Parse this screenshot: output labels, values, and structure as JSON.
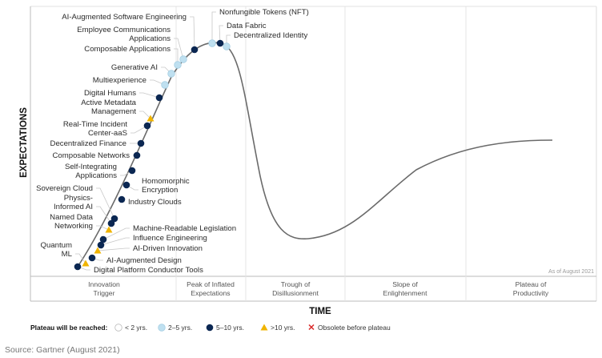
{
  "axes": {
    "y_label": "EXPECTATIONS",
    "x_label": "TIME"
  },
  "as_of": "As of August 2021",
  "phases": [
    [
      "Innovation",
      "Trigger"
    ],
    [
      "Peak of Inflated",
      "Expectations"
    ],
    [
      "Trough of",
      "Disillusionment"
    ],
    [
      "Slope of",
      "Enlightenment"
    ],
    [
      "Plateau of",
      "Productivity"
    ]
  ],
  "technologies": [
    {
      "lines": [
        "Nonfungible Tokens (NFT)"
      ],
      "category": "2-5"
    },
    {
      "lines": [
        "Data Fabric"
      ],
      "category": "5-10"
    },
    {
      "lines": [
        "Decentralized Identity"
      ],
      "category": "2-5"
    },
    {
      "lines": [
        "AI-Augmented Software Engineering"
      ],
      "category": "5-10"
    },
    {
      "lines": [
        "Employee Communications",
        "Applications"
      ],
      "category": "2-5"
    },
    {
      "lines": [
        "Composable Applications"
      ],
      "category": "2-5"
    },
    {
      "lines": [
        "Generative AI"
      ],
      "category": "2-5"
    },
    {
      "lines": [
        "Multiexperience"
      ],
      "category": "2-5"
    },
    {
      "lines": [
        "Digital Humans"
      ],
      "category": "5-10"
    },
    {
      "lines": [
        "Active Metadata",
        "Management"
      ],
      "category": ">10"
    },
    {
      "lines": [
        "Real-Time Incident",
        "Center-aaS"
      ],
      "category": "5-10"
    },
    {
      "lines": [
        "Decentralized Finance"
      ],
      "category": "5-10"
    },
    {
      "lines": [
        "Composable Networks"
      ],
      "category": "5-10"
    },
    {
      "lines": [
        "Self-Integrating",
        "Applications"
      ],
      "category": "5-10"
    },
    {
      "lines": [
        "Homomorphic",
        "Encryption"
      ],
      "category": "5-10"
    },
    {
      "lines": [
        "Industry Clouds"
      ],
      "category": "5-10"
    },
    {
      "lines": [
        "Sovereign Cloud"
      ],
      "category": "5-10"
    },
    {
      "lines": [
        "Physics-",
        "Informed AI"
      ],
      "category": "5-10"
    },
    {
      "lines": [
        "Named Data",
        "Networking"
      ],
      "category": ">10"
    },
    {
      "lines": [
        "Machine-Readable Legislation"
      ],
      "category": "5-10"
    },
    {
      "lines": [
        "Influence Engineering"
      ],
      "category": "5-10"
    },
    {
      "lines": [
        "AI-Driven Innovation"
      ],
      "category": ">10"
    },
    {
      "lines": [
        "AI-Augmented Design"
      ],
      "category": "5-10"
    },
    {
      "lines": [
        "Quantum",
        "ML"
      ],
      "category": ">10"
    },
    {
      "lines": [
        "Digital Platform Conductor Tools"
      ],
      "category": "5-10"
    }
  ],
  "legend": {
    "title": "Plateau will be reached:",
    "items": [
      {
        "key": "<2",
        "label": "< 2 yrs."
      },
      {
        "key": "2-5",
        "label": "2–5 yrs."
      },
      {
        "key": "5-10",
        "label": "5–10 yrs."
      },
      {
        "key": ">10",
        "label": ">10 yrs."
      },
      {
        "key": "obsolete",
        "label": "Obsolete before plateau"
      }
    ]
  },
  "colors": {
    "<2": "#ffffff",
    "2-5": "#bfe0f0",
    "5-10": "#0b2752",
    ">10": "#f0b400",
    "obsolete": "#d92b2b",
    "curve": "#6a6a6a"
  },
  "source": "Source: Gartner (August 2021)"
}
